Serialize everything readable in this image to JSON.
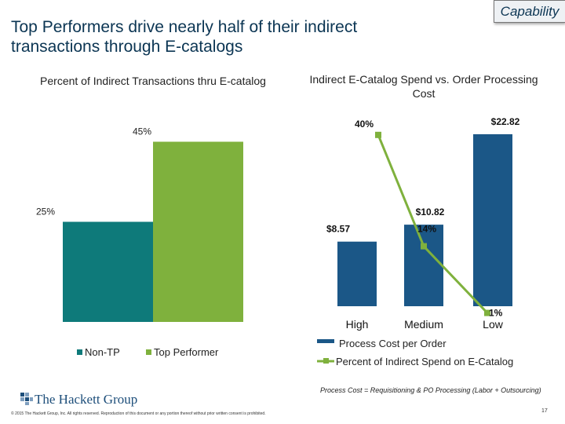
{
  "slide": {
    "title": "Top Performers drive nearly half of their indirect transactions through E-catalogs",
    "badge": "Capability",
    "footnote": "Process Cost = Requisitioning & PO Processing (Labor + Outsourcing)",
    "copyright": "© 2015 The Hackett Group, Inc. All rights reserved. Reproduction of this document or any portion thereof without prior written consent is prohibited.",
    "logo_text": "The Hackett Group",
    "page_number": "17"
  },
  "chart_data": [
    {
      "type": "bar",
      "title": "Percent of Indirect Transactions thru E-catalog",
      "categories": [
        "Non-TP",
        "Top Performer"
      ],
      "values": [
        25,
        45
      ],
      "value_labels": [
        "25%",
        "45%"
      ],
      "ylim": [
        0,
        50
      ],
      "colors": [
        "#0e7a7a",
        "#7fb13d"
      ],
      "legend": [
        "Non-TP",
        "Top Performer"
      ],
      "legend_position": "bottom"
    },
    {
      "type": "bar",
      "title": "Indirect E-Catalog Spend vs. Order Processing Cost",
      "categories": [
        "High",
        "Medium",
        "Low"
      ],
      "series": [
        {
          "name": "Process Cost per Order",
          "type": "bar",
          "values": [
            8.57,
            10.82,
            22.82
          ],
          "labels": [
            "$8.57",
            "$10.82",
            "$22.82"
          ],
          "color": "#1b5787",
          "ylim": [
            0,
            25
          ]
        },
        {
          "name": "Percent of Indirect Spend on E-Catalog",
          "type": "line",
          "values": [
            40,
            14,
            1
          ],
          "labels": [
            "40%",
            "14%",
            "1%"
          ],
          "color": "#7fb13d",
          "ylim": [
            0,
            44
          ]
        }
      ],
      "legend_position": "bottom"
    }
  ]
}
